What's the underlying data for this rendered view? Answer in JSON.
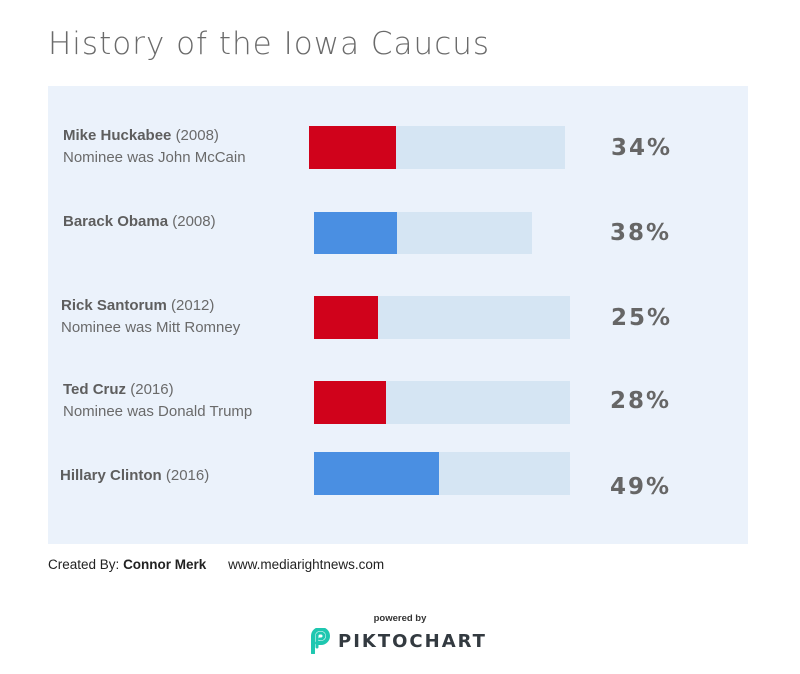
{
  "title": "History of the Iowa Caucus",
  "colors": {
    "loser": "#d0021b",
    "winner": "#4a8fe2",
    "track": "#d5e5f3",
    "panel": "#ebf2fb",
    "brand": "#1fc7b0"
  },
  "chart_data": {
    "type": "bar",
    "orientation": "horizontal",
    "categories": [
      "Mike Huckabee (2008)",
      "Barack Obama (2008)",
      "Rick Santorum (2012)",
      "Ted Cruz (2016)",
      "Hillary Clinton (2016)"
    ],
    "values": [
      34,
      38,
      25,
      28,
      49
    ],
    "unit": "%",
    "rows": [
      {
        "name": "Mike Huckabee",
        "year": "(2008)",
        "note": "Nominee was John McCain",
        "value": 34,
        "pct_label": "34%",
        "color": "#d0021b"
      },
      {
        "name": "Barack Obama",
        "year": "(2008)",
        "note": "",
        "value": 38,
        "pct_label": "38%",
        "color": "#4a8fe2"
      },
      {
        "name": "Rick Santorum",
        "year": "(2012)",
        "note": "Nominee was Mitt Romney",
        "value": 25,
        "pct_label": "25%",
        "color": "#d0021b"
      },
      {
        "name": "Ted Cruz",
        "year": "(2016)",
        "note": "Nominee was Donald Trump",
        "value": 28,
        "pct_label": "28%",
        "color": "#d0021b"
      },
      {
        "name": "Hillary Clinton",
        "year": "(2016)",
        "note": "",
        "value": 49,
        "pct_label": "49%",
        "color": "#4a8fe2"
      }
    ]
  },
  "credit": {
    "prefix": "Created By:",
    "author": "Connor Merk",
    "site": "www.mediarightnews.com"
  },
  "footer": {
    "powered": "powered by",
    "brand": "PIKTOCHART"
  }
}
